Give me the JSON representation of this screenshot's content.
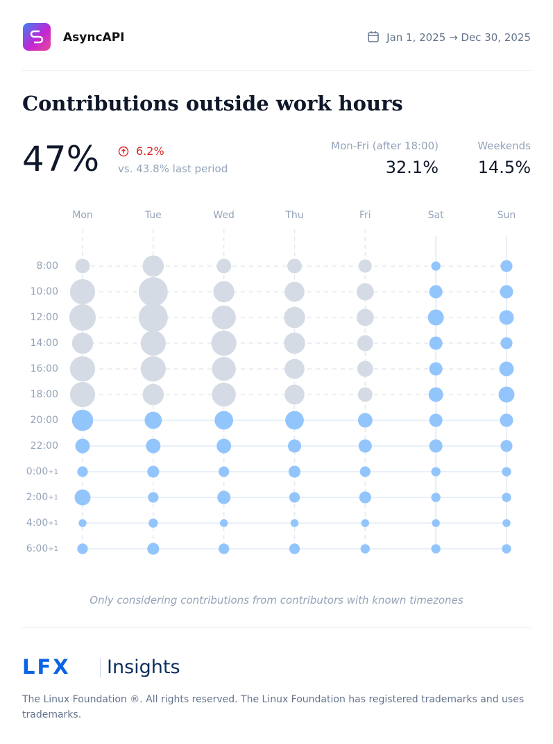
{
  "header": {
    "project": "AsyncAPI",
    "date_range": "Jan 1, 2025 → Dec 30, 2025"
  },
  "title": "Contributions outside work hours",
  "summary": {
    "total": "47%",
    "change": "6.2%",
    "comparison": "vs. 43.8% last period",
    "weekday_label": "Mon-Fri (after 18:00)",
    "weekday_value": "32.1%",
    "weekend_label": "Weekends",
    "weekend_value": "14.5%"
  },
  "chart_data": {
    "type": "bubble",
    "categories": [
      "Mon",
      "Tue",
      "Wed",
      "Thu",
      "Fri",
      "Sat",
      "Sun"
    ],
    "rows": [
      {
        "time": "8:00"
      },
      {
        "time": "10:00"
      },
      {
        "time": "12:00"
      },
      {
        "time": "14:00"
      },
      {
        "time": "16:00"
      },
      {
        "time": "18:00"
      },
      {
        "time": "20:00"
      },
      {
        "time": "22:00"
      },
      {
        "time": "0:00",
        "suffix": "+1"
      },
      {
        "time": "2:00",
        "suffix": "+1"
      },
      {
        "time": "4:00",
        "suffix": "+1"
      },
      {
        "time": "6:00",
        "suffix": "+1"
      }
    ],
    "values": [
      [
        11,
        16,
        11,
        11,
        10,
        7,
        9
      ],
      [
        19,
        22,
        16,
        15,
        13,
        10,
        10
      ],
      [
        20,
        22,
        18,
        16,
        13,
        12,
        11
      ],
      [
        16,
        19,
        19,
        16,
        12,
        10,
        9
      ],
      [
        19,
        19,
        18,
        15,
        12,
        10,
        11
      ],
      [
        19,
        16,
        18,
        15,
        11,
        11,
        12
      ],
      [
        16,
        13,
        14,
        14,
        11,
        10,
        10
      ],
      [
        11,
        11,
        11,
        10,
        10,
        10,
        9
      ],
      [
        8,
        9,
        8,
        9,
        8,
        7,
        7
      ],
      [
        12,
        8,
        10,
        8,
        9,
        7,
        7
      ],
      [
        6,
        7,
        6,
        6,
        6,
        6,
        6
      ],
      [
        8,
        9,
        8,
        8,
        7,
        7,
        7
      ]
    ],
    "work_hours": {
      "days": [
        0,
        4
      ],
      "rows": [
        0,
        5
      ]
    },
    "work_color": "#d5dbe5",
    "outside_color": "#93c5fd"
  },
  "note": "Only considering contributions from contributors with known timezones",
  "footer": {
    "brand": "LFX",
    "product": "Insights",
    "legal": "The Linux Foundation ®. All rights reserved. The Linux Foundation has registered trademarks and uses trademarks."
  }
}
